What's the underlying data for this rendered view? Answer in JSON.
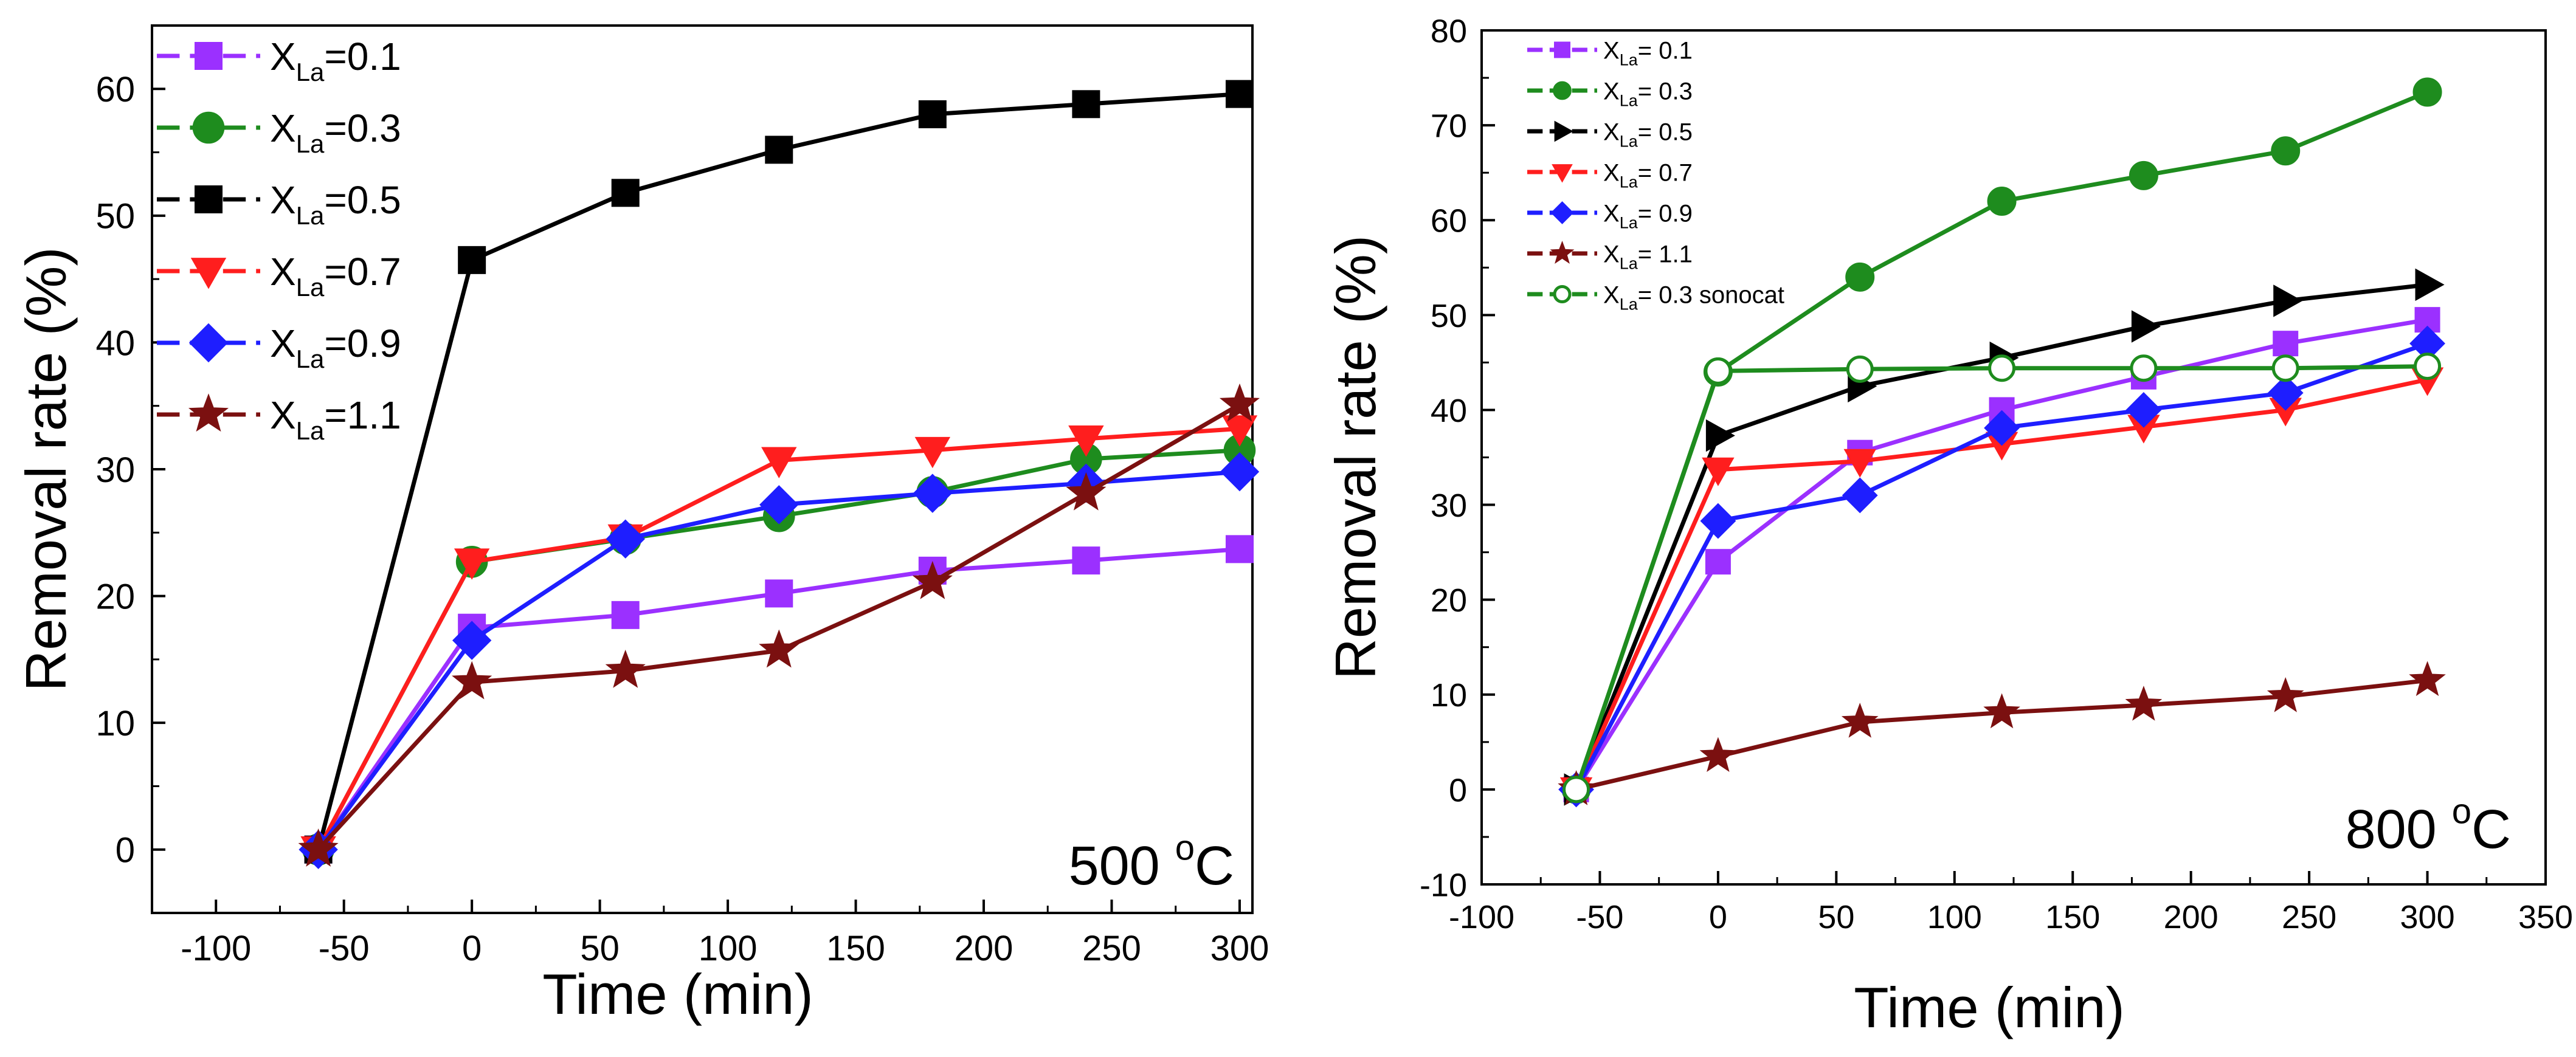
{
  "chart_data": [
    {
      "type": "line",
      "panel_label": "500 °C",
      "panel_label_text": "500",
      "panel_label_sup": "o",
      "panel_label_unit": "C",
      "xlabel": "Time  (min)",
      "ylabel": "Removal rate  (%)",
      "xlim": [
        -125,
        305
      ],
      "ylim": [
        -5,
        65
      ],
      "xticks": [
        -100,
        -50,
        0,
        50,
        100,
        150,
        200,
        250,
        300
      ],
      "yticks": [
        0,
        10,
        20,
        30,
        40,
        50,
        60
      ],
      "x": [
        -60,
        0,
        60,
        120,
        180,
        240,
        300
      ],
      "series": [
        {
          "name": "X_La=0.1",
          "label_main": "X",
          "label_sub": "La",
          "label_tail": "=0.1",
          "color": "#9B30FF",
          "marker": "square",
          "values": [
            0,
            17.5,
            18.5,
            20.2,
            22,
            22.8,
            23.7
          ]
        },
        {
          "name": "X_La=0.3",
          "label_main": "X",
          "label_sub": "La",
          "label_tail": "=0.3",
          "color": "#1E8C1E",
          "marker": "circle",
          "values": [
            0,
            22.7,
            24.5,
            26.3,
            28.2,
            30.8,
            31.5
          ]
        },
        {
          "name": "X_La=0.5",
          "label_main": "X",
          "label_sub": "La",
          "label_tail": "=0.5",
          "color": "#000000",
          "marker": "square",
          "values": [
            0,
            46.5,
            51.8,
            55.2,
            58,
            58.8,
            59.6
          ]
        },
        {
          "name": "X_La=0.7",
          "label_main": "X",
          "label_sub": "La",
          "label_tail": "=0.7",
          "color": "#FF1E1E",
          "marker": "triangle-down",
          "values": [
            0,
            22.7,
            24.6,
            30.7,
            31.5,
            32.4,
            33.2
          ]
        },
        {
          "name": "X_La=0.9",
          "label_main": "X",
          "label_sub": "La",
          "label_tail": "=0.9",
          "color": "#1E1EFF",
          "marker": "diamond",
          "values": [
            0,
            16.5,
            24.5,
            27.2,
            28.1,
            28.9,
            29.8
          ]
        },
        {
          "name": "X_La=1.1",
          "label_main": "X",
          "label_sub": "La",
          "label_tail": "=1.1",
          "color": "#7B1010",
          "marker": "star",
          "values": [
            0,
            13.2,
            14.1,
            15.7,
            21.1,
            28.1,
            35.1
          ]
        }
      ]
    },
    {
      "type": "line",
      "panel_label": "800 °C",
      "panel_label_text": "800",
      "panel_label_sup": "o",
      "panel_label_unit": "C",
      "xlabel": "Time (min)",
      "ylabel": "Removal rate  (%)",
      "xlim": [
        -100,
        350
      ],
      "ylim": [
        -10,
        80
      ],
      "xticks": [
        -100,
        -50,
        0,
        50,
        100,
        150,
        200,
        250,
        300,
        350
      ],
      "yticks": [
        -10,
        0,
        10,
        20,
        30,
        40,
        50,
        60,
        70,
        80
      ],
      "x": [
        -60,
        0,
        60,
        120,
        180,
        240,
        300
      ],
      "series": [
        {
          "name": "X_La= 0.1",
          "label_main": "X",
          "label_sub": "La",
          "label_tail": "= 0.1",
          "color": "#9B30FF",
          "marker": "square",
          "values": [
            0,
            24,
            35.5,
            40,
            43.5,
            47,
            49.5
          ]
        },
        {
          "name": "X_La= 0.3",
          "label_main": "X",
          "label_sub": "La",
          "label_tail": "= 0.3",
          "color": "#1E8C1E",
          "marker": "circle",
          "values": [
            0,
            44,
            54,
            62,
            64.7,
            67.3,
            73.5
          ]
        },
        {
          "name": "X_La= 0.5",
          "label_main": "X",
          "label_sub": "La",
          "label_tail": "= 0.5",
          "color": "#000000",
          "marker": "triangle-right",
          "values": [
            0,
            37.3,
            42.5,
            45.5,
            48.8,
            51.5,
            53.2
          ]
        },
        {
          "name": "X_La= 0.7",
          "label_main": "X",
          "label_sub": "La",
          "label_tail": "= 0.7",
          "color": "#FF1E1E",
          "marker": "triangle-down",
          "values": [
            0,
            33.7,
            34.6,
            36.4,
            38.2,
            40,
            43.2
          ]
        },
        {
          "name": "X_La= 0.9",
          "label_main": "X",
          "label_sub": "La",
          "label_tail": "= 0.9",
          "color": "#1E1EFF",
          "marker": "diamond",
          "values": [
            0,
            28.3,
            31,
            38.1,
            40,
            41.8,
            47
          ]
        },
        {
          "name": "X_La= 1.1",
          "label_main": "X",
          "label_sub": "La",
          "label_tail": "= 1.1",
          "color": "#7B1010",
          "marker": "star",
          "values": [
            0,
            3.5,
            7.1,
            8.1,
            8.9,
            9.8,
            11.5
          ]
        },
        {
          "name": "X_La= 0.3 sonocat",
          "label_main": "X",
          "label_sub": "La",
          "label_tail": "= 0.3 sonocat",
          "color": "#1E8C1E",
          "marker": "open-circle",
          "values": [
            0,
            44.1,
            44.3,
            44.4,
            44.4,
            44.4,
            44.6
          ]
        }
      ]
    }
  ]
}
